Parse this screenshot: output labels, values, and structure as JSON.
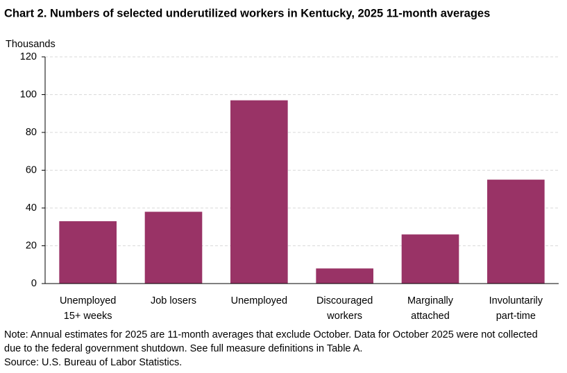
{
  "chart_data": {
    "type": "bar",
    "title": "Chart 2. Numbers of selected underutilized workers in Kentucky, 2025 11-month averages",
    "y_label": "Thousands",
    "categories": [
      [
        "Unemployed",
        "15+ weeks"
      ],
      [
        "Job losers"
      ],
      [
        "Unemployed"
      ],
      [
        "Discouraged",
        "workers"
      ],
      [
        "Marginally",
        "attached"
      ],
      [
        "Involuntarily",
        "part-time"
      ]
    ],
    "values": [
      33,
      38,
      97,
      8,
      26,
      55
    ],
    "color": "#993366",
    "ylim": [
      0,
      120
    ],
    "yticks": [
      0,
      20,
      40,
      60,
      80,
      100,
      120
    ],
    "grid": true,
    "note": "Note: Annual estimates for 2025 are 11-month averages that exclude October. Data for October 2025 were not collected due to the federal government shutdown. See full measure definitions in Table A.",
    "source": "Source: U.S. Bureau of Labor Statistics."
  }
}
